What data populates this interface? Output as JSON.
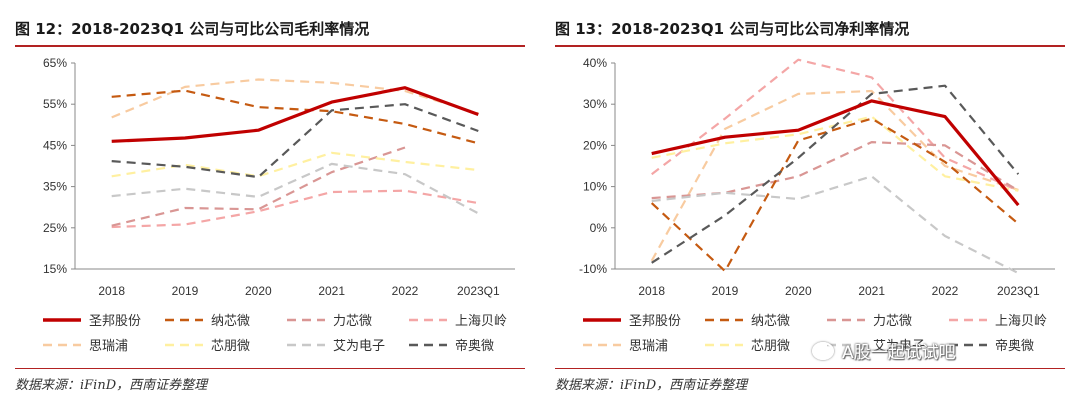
{
  "legend": [
    {
      "name": "圣邦股份",
      "color": "#c00000",
      "dash": "solid",
      "width": 3.2
    },
    {
      "name": "纳芯微",
      "color": "#c55a11",
      "dash": "dash",
      "width": 2.2
    },
    {
      "name": "力芯微",
      "color": "#d99694",
      "dash": "dash",
      "width": 2.2
    },
    {
      "name": "上海贝岭",
      "color": "#f4a6a6",
      "dash": "dash",
      "width": 2.2
    },
    {
      "name": "思瑞浦",
      "color": "#f8cba0",
      "dash": "dash",
      "width": 2.2
    },
    {
      "name": "芯朋微",
      "color": "#fff0a0",
      "dash": "dash",
      "width": 2.2
    },
    {
      "name": "艾为电子",
      "color": "#c8c8c8",
      "dash": "dash",
      "width": 2.2
    },
    {
      "name": "帝奥微",
      "color": "#595959",
      "dash": "dash",
      "width": 2.2
    }
  ],
  "chart_data": [
    {
      "type": "line",
      "title": "图 12：2018-2023Q1 公司与可比公司毛利率情况",
      "source": "数据来源：iFinD，西南证券整理",
      "categories": [
        "2018",
        "2019",
        "2020",
        "2021",
        "2022",
        "2023Q1"
      ],
      "yticks": [
        "15%",
        "25%",
        "35%",
        "45%",
        "55%",
        "65%"
      ],
      "ylim": [
        15,
        65
      ],
      "grid": false,
      "legend_position": "bottom",
      "series": [
        {
          "name": "圣邦股份",
          "values": [
            46,
            46.8,
            48.7,
            55.5,
            59,
            52.5
          ]
        },
        {
          "name": "纳芯微",
          "values": [
            56.8,
            58.3,
            54.3,
            53.3,
            50.2,
            45.5
          ]
        },
        {
          "name": "力芯微",
          "values": [
            25.5,
            29.8,
            29.5,
            38.5,
            44.5,
            null
          ]
        },
        {
          "name": "上海贝岭",
          "values": [
            25.2,
            25.8,
            29,
            33.7,
            34,
            31
          ]
        },
        {
          "name": "思瑞浦",
          "values": [
            51.8,
            59.2,
            61,
            60.2,
            58.2,
            52.8
          ]
        },
        {
          "name": "芯朋微",
          "values": [
            37.5,
            40.3,
            37.5,
            43.2,
            41,
            39
          ]
        },
        {
          "name": "艾为电子",
          "values": [
            32.7,
            34.5,
            32.5,
            40.5,
            38,
            28.5
          ]
        },
        {
          "name": "帝奥微",
          "values": [
            41.2,
            39.8,
            37.3,
            53.5,
            55,
            48.5
          ]
        }
      ]
    },
    {
      "type": "line",
      "title": "图 13：2018-2023Q1 公司与可比公司净利率情况",
      "source": "数据来源：iFinD，西南证券整理",
      "categories": [
        "2018",
        "2019",
        "2020",
        "2021",
        "2022",
        "2023Q1"
      ],
      "yticks": [
        "-10%",
        "0%",
        "10%",
        "20%",
        "30%",
        "40%"
      ],
      "ylim": [
        -10,
        40
      ],
      "grid": false,
      "legend_position": "bottom",
      "series": [
        {
          "name": "圣邦股份",
          "values": [
            18,
            22,
            23.7,
            30.8,
            27,
            5.5
          ]
        },
        {
          "name": "纳芯微",
          "values": [
            6,
            -10.5,
            21.2,
            26.5,
            16,
            1
          ]
        },
        {
          "name": "力芯微",
          "values": [
            7.2,
            8.5,
            12.5,
            20.8,
            20,
            9
          ]
        },
        {
          "name": "上海贝岭",
          "values": [
            13,
            26.5,
            40.8,
            36.5,
            17,
            9
          ]
        },
        {
          "name": "思瑞浦",
          "values": [
            -8,
            24,
            32.5,
            33.2,
            15,
            9.2
          ]
        },
        {
          "name": "芯朋微",
          "values": [
            17,
            20.5,
            22.7,
            27,
            12.5,
            9
          ]
        },
        {
          "name": "艾为电子",
          "values": [
            6.5,
            8.5,
            7,
            12.5,
            -2,
            -11
          ]
        },
        {
          "name": "帝奥微",
          "values": [
            -8.5,
            3,
            17,
            32.5,
            34.5,
            13
          ]
        }
      ]
    }
  ],
  "watermark": "A股一起试试吧"
}
